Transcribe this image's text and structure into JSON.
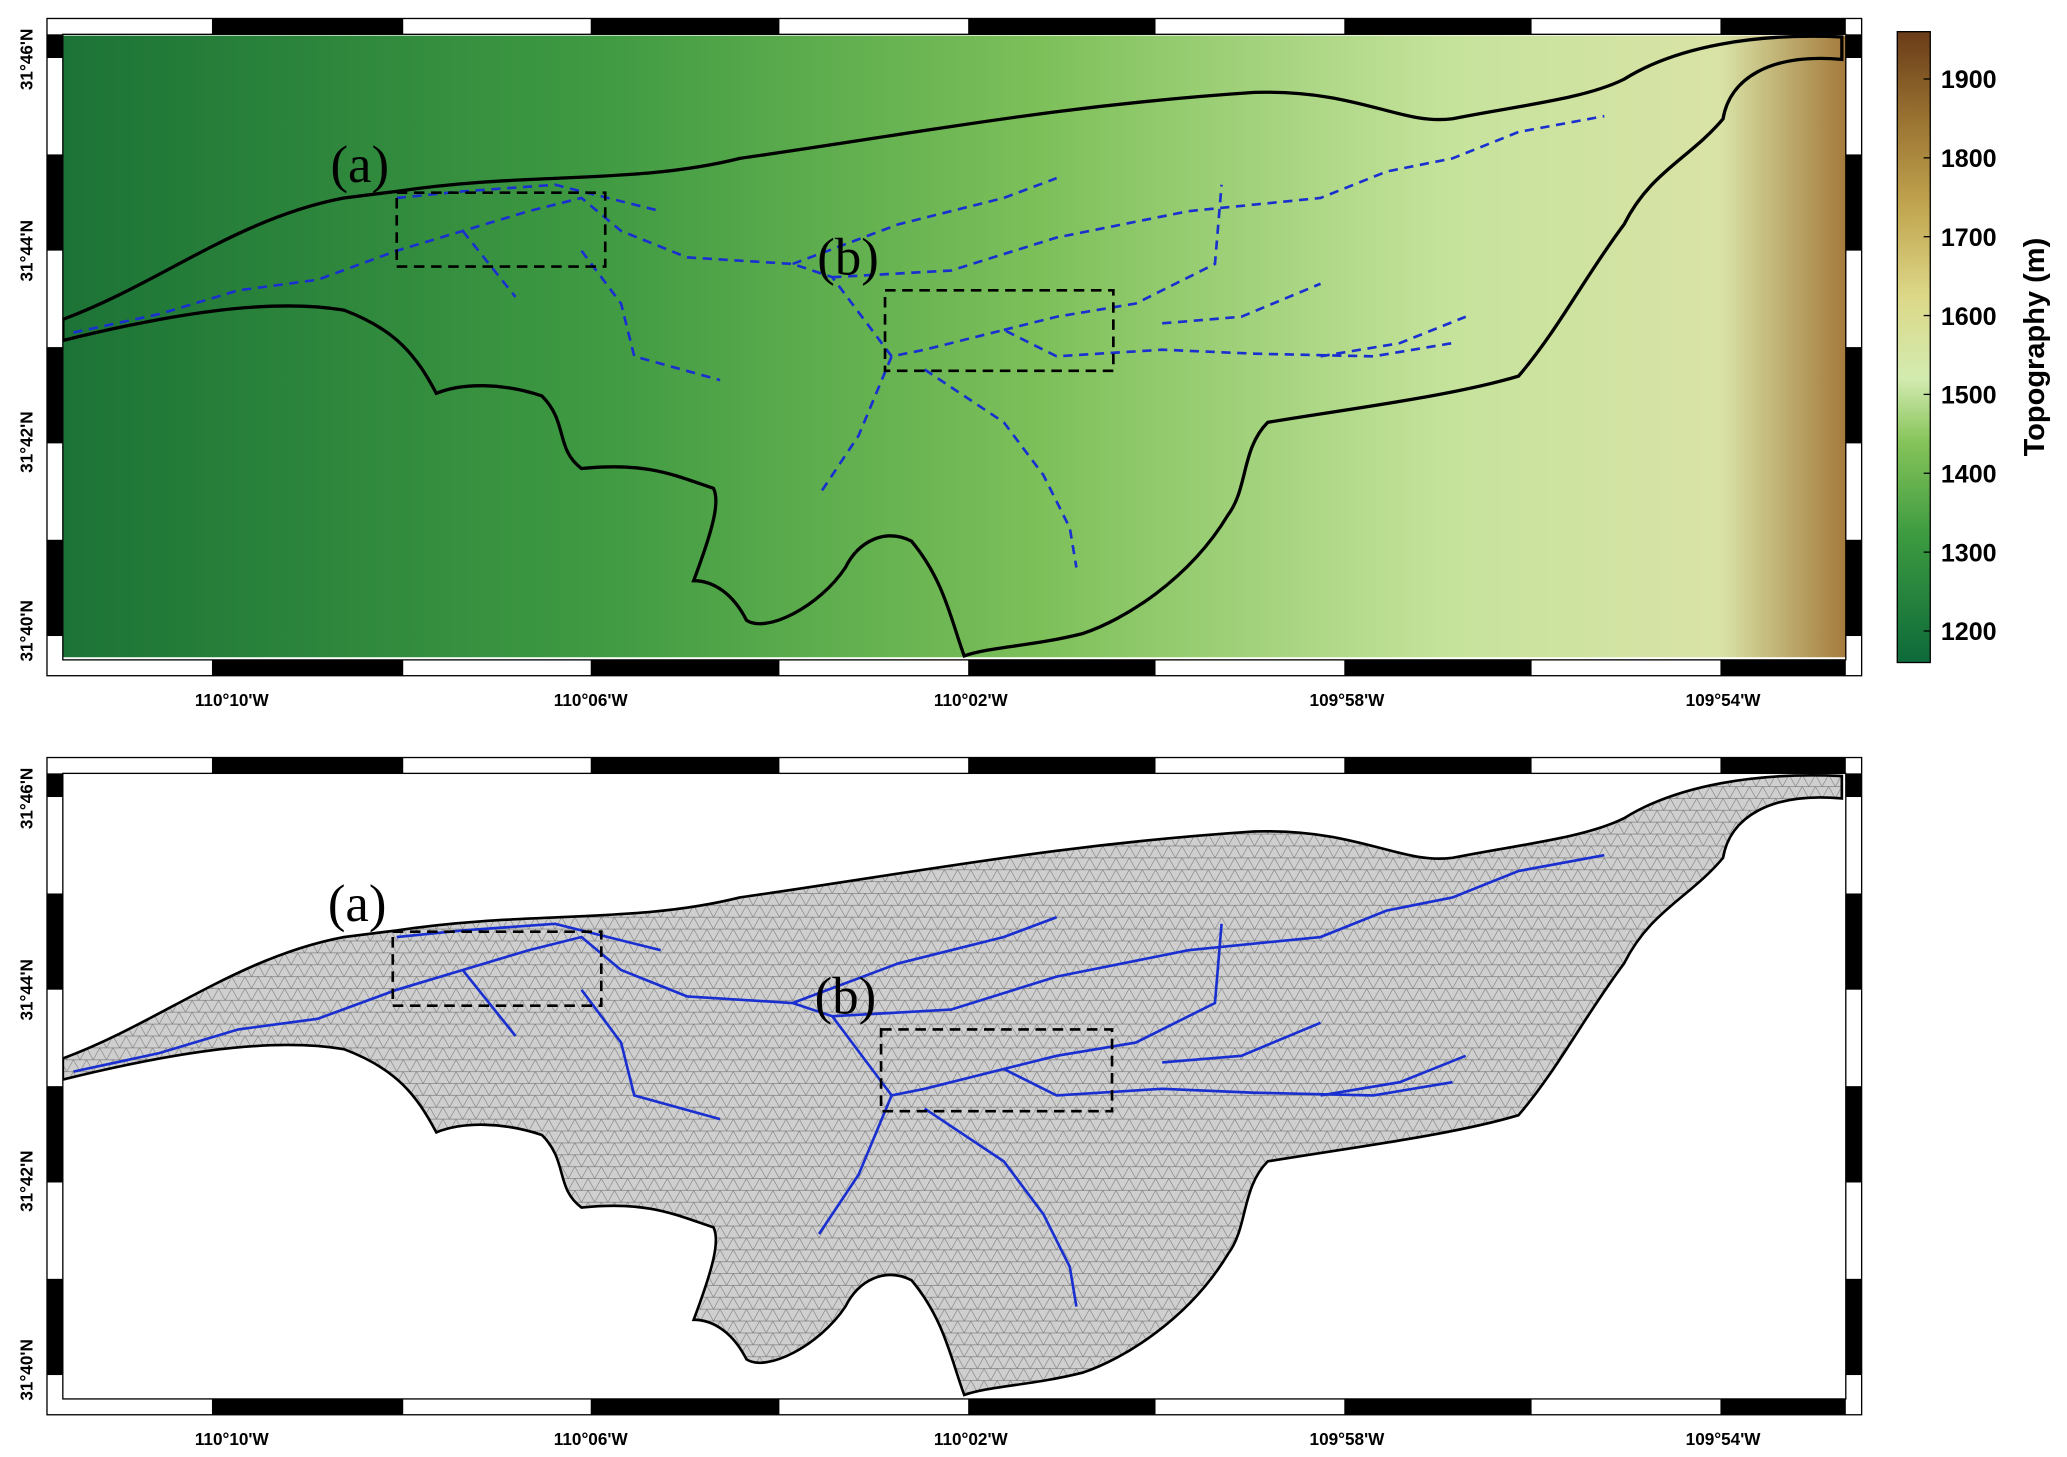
{
  "top_map": {
    "x_ticks": [
      "110°10'W",
      "110°06'W",
      "110°02'W",
      "109°58'W",
      "109°54'W"
    ],
    "y_ticks": [
      "31°46'N",
      "31°44'N",
      "31°42'N",
      "31°40'N"
    ],
    "annotations": [
      "(a)",
      "(b)"
    ],
    "colorbar": {
      "label": "Topography (m)",
      "lim": [
        1160,
        1960
      ],
      "ticks": [
        1200,
        1300,
        1400,
        1500,
        1600,
        1700,
        1800,
        1900
      ]
    }
  },
  "bottom_map": {
    "x_ticks": [
      "110°10'W",
      "110°06'W",
      "110°02'W",
      "109°58'W",
      "109°54'W"
    ],
    "y_ticks": [
      "31°46'N",
      "31°44'N",
      "31°42'N",
      "31°40'N"
    ],
    "annotations": [
      "(a)",
      "(b)"
    ]
  }
}
